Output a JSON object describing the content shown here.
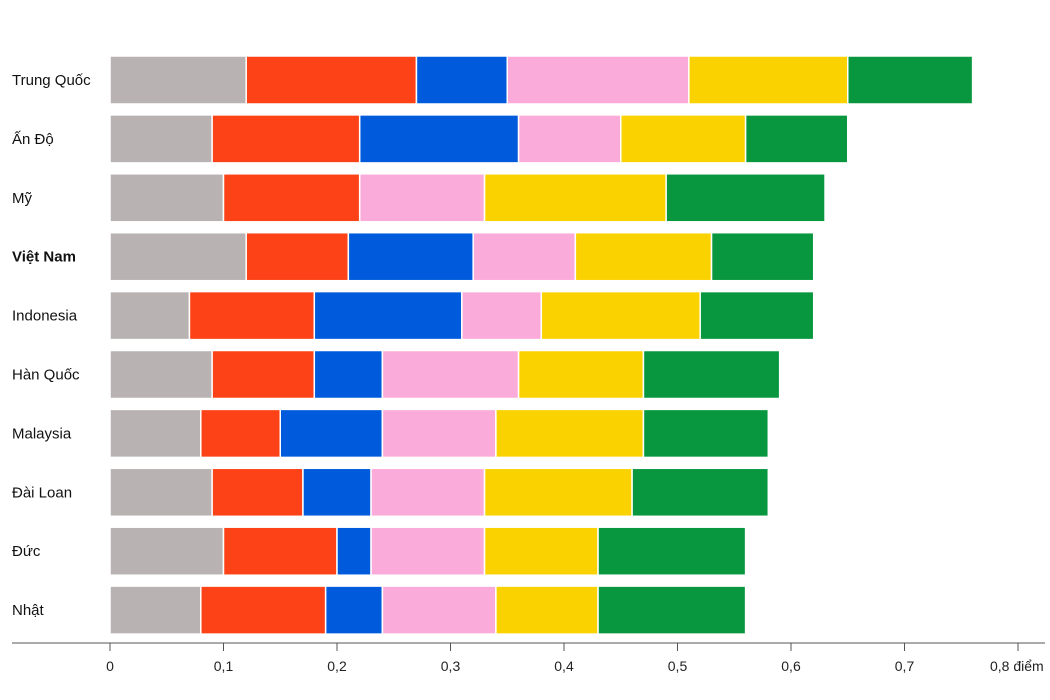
{
  "chart_data": {
    "type": "bar",
    "orientation": "horizontal",
    "stacked": true,
    "unit_label": "điểm",
    "categories": [
      "Trung Quốc",
      "Ấn Độ",
      "Mỹ",
      "Việt Nam",
      "Indonesia",
      "Hàn Quốc",
      "Malaysia",
      "Đài Loan",
      "Đức",
      "Nhật"
    ],
    "highlight_category": "Việt Nam",
    "xlim": [
      0,
      0.8
    ],
    "xticks": [
      0,
      0.1,
      0.2,
      0.3,
      0.4,
      0.5,
      0.6,
      0.7,
      0.8
    ],
    "xtick_labels": [
      "0",
      "0,1",
      "0,2",
      "0,3",
      "0,4",
      "0,5",
      "0,6",
      "0,7",
      "0,8 điểm"
    ],
    "series": [
      {
        "name": "gray",
        "color": "#b8b3b2",
        "values": [
          0.12,
          0.09,
          0.1,
          0.12,
          0.07,
          0.09,
          0.08,
          0.09,
          0.1,
          0.08
        ]
      },
      {
        "name": "red",
        "color": "#fc4216",
        "values": [
          0.15,
          0.13,
          0.12,
          0.09,
          0.11,
          0.09,
          0.07,
          0.08,
          0.1,
          0.11
        ]
      },
      {
        "name": "blue",
        "color": "#005bdc",
        "values": [
          0.08,
          0.14,
          0.0,
          0.11,
          0.13,
          0.06,
          0.09,
          0.06,
          0.03,
          0.05
        ]
      },
      {
        "name": "pink",
        "color": "#fbabd9",
        "values": [
          0.16,
          0.09,
          0.11,
          0.09,
          0.07,
          0.12,
          0.1,
          0.1,
          0.1,
          0.1
        ]
      },
      {
        "name": "yellow",
        "color": "#fad200",
        "values": [
          0.14,
          0.11,
          0.16,
          0.12,
          0.14,
          0.11,
          0.13,
          0.13,
          0.1,
          0.09
        ]
      },
      {
        "name": "green",
        "color": "#08963e",
        "values": [
          0.11,
          0.09,
          0.14,
          0.09,
          0.1,
          0.12,
          0.11,
          0.12,
          0.13,
          0.13
        ]
      }
    ]
  }
}
